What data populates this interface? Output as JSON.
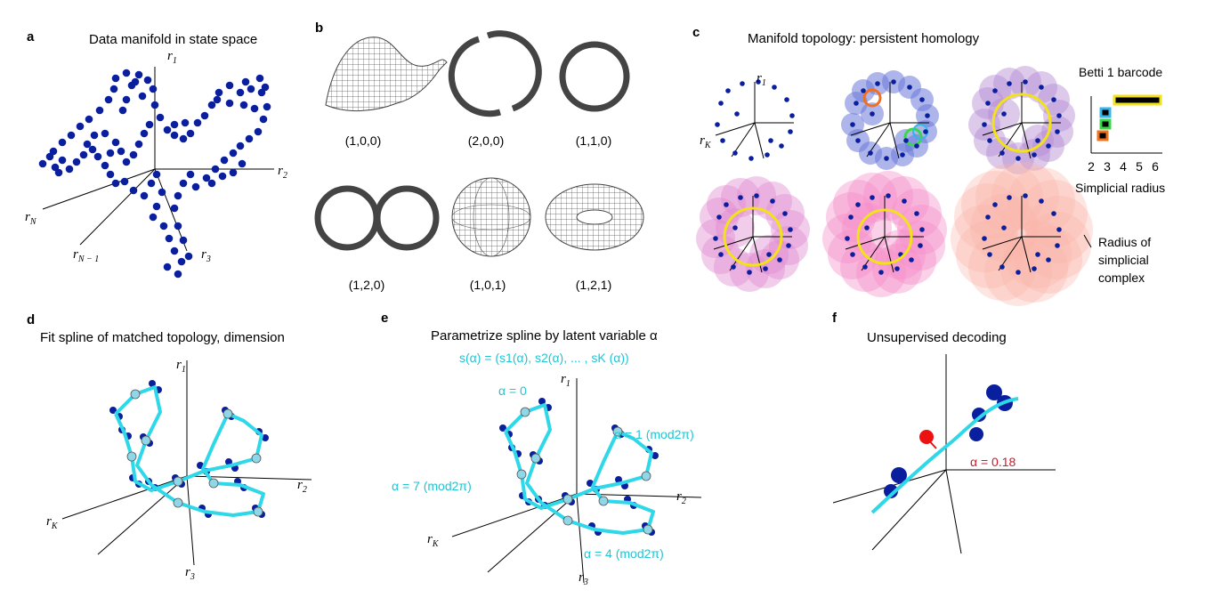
{
  "panels": {
    "a": {
      "letter": "a",
      "title": "Data manifold in state space",
      "axes": {
        "r1": "r",
        "r1_sub": "1",
        "r2": "r",
        "r2_sub": "2",
        "r3": "r",
        "r3_sub": "3",
        "rN": "r",
        "rN_sub": "N",
        "rN1": "r",
        "rN1_sub": "N − 1"
      }
    },
    "b": {
      "letter": "b",
      "tuples": [
        "(1,0,0)",
        "(2,0,0)",
        "(1,1,0)",
        "(1,2,0)",
        "(1,0,1)",
        "(1,2,1)"
      ]
    },
    "c": {
      "letter": "c",
      "title": "Manifold topology: persistent homology",
      "axes": {
        "r1": "r",
        "r1_sub": "1",
        "rK": "r",
        "rK_sub": "K"
      },
      "barcode_title": "Betti 1 barcode",
      "barcode_ticks": [
        "2",
        "3",
        "4",
        "5",
        "6"
      ],
      "barcode_xlabel": "Simplicial radius",
      "radius_label": [
        "Radius of",
        "simplicial",
        "complex"
      ]
    },
    "d": {
      "letter": "d",
      "title": "Fit spline of matched topology, dimension",
      "axes": {
        "r1": "r",
        "r1_sub": "1",
        "r2": "r",
        "r2_sub": "2",
        "r3": "r",
        "r3_sub": "3",
        "rK": "r",
        "rK_sub": "K"
      }
    },
    "e": {
      "letter": "e",
      "title": "Parametrize spline by latent variable α",
      "formula": "s(α) = (s1(α), s2(α), ... , sK (α))",
      "labels": [
        "α = 0",
        "α = 1 (mod2π)",
        "α = 7 (mod2π)",
        "α = 4 (mod2π)"
      ],
      "axes": {
        "r1": "r",
        "r1_sub": "1",
        "r2": "r",
        "r2_sub": "2",
        "r3": "r",
        "r3_sub": "3",
        "rK": "r",
        "rK_sub": "K"
      }
    },
    "f": {
      "letter": "f",
      "title": "Unsupervised decoding",
      "alpha_label": "α = 0.18"
    }
  },
  "colors": {
    "dots": "#0a1f9e",
    "spline": "#2fd8e8",
    "yellow": "#f2e21a",
    "red": "#ee1111",
    "blue_disk": "#6a78d8",
    "purple_disk": "#b48ad2",
    "magenta_disk": "#e089d0",
    "pink_disk": "#f58cc8",
    "salmon_disk": "#f8b4a8"
  }
}
